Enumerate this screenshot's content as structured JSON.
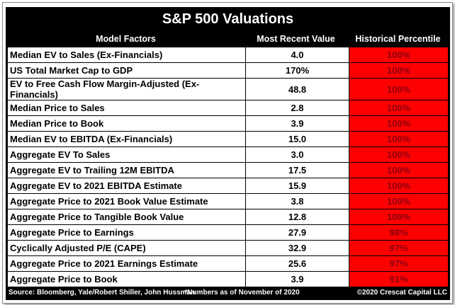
{
  "chart_data": {
    "type": "table",
    "title": "S&P 500 Valuations",
    "columns": [
      "Model Factors",
      "Most Recent Value",
      "Historical Percentile"
    ],
    "rows": [
      [
        "Median EV to Sales (Ex-Financials)",
        "4.0",
        "100%"
      ],
      [
        "US Total Market Cap to GDP",
        "170%",
        "100%"
      ],
      [
        "EV to Free Cash Flow Margin-Adjusted (Ex-Financials)",
        "48.8",
        "100%"
      ],
      [
        "Median Price to Sales",
        "2.8",
        "100%"
      ],
      [
        "Median Price to Book",
        "3.9",
        "100%"
      ],
      [
        "Median EV to EBITDA (Ex-Financials)",
        "15.0",
        "100%"
      ],
      [
        "Aggregate EV To Sales",
        "3.0",
        "100%"
      ],
      [
        "Aggregate EV to Trailing 12M EBITDA",
        "17.5",
        "100%"
      ],
      [
        "Aggregate EV to 2021 EBITDA Estimate",
        "15.9",
        "100%"
      ],
      [
        "Aggregate Price to 2021 Book Value Estimate",
        "3.8",
        "100%"
      ],
      [
        "Aggregate Price to Tangible Book Value",
        "12.8",
        "100%"
      ],
      [
        "Aggregate Price to Earnings",
        "27.9",
        "98%"
      ],
      [
        "Cyclically Adjusted P/E (CAPE)",
        "32.9",
        "97%"
      ],
      [
        "Aggregate Price to 2021 Earnings Estimate",
        "25.6",
        "97%"
      ],
      [
        "Aggregate Price to Book",
        "3.9",
        "91%"
      ]
    ],
    "percentile_cell_color": "#ff0000"
  },
  "footer": {
    "source": "Source: Bloomberg, Yale/Robert Shiller, John Hussman",
    "note": "*Numbers as of November of 2020",
    "copyright": "©2020 Crescat Capital LLC"
  }
}
